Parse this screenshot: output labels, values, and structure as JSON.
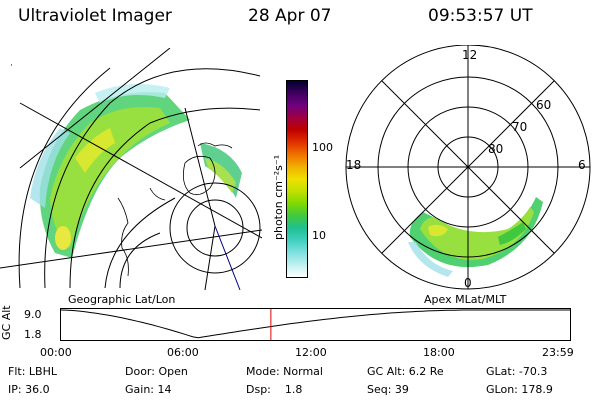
{
  "header": {
    "instrument": "Ultraviolet Imager",
    "date": "28 Apr 07",
    "time": "09:53:57 UT"
  },
  "left_panel": {
    "caption": "Geographic Lat/Lon"
  },
  "right_panel": {
    "caption": "Apex MLat/MLT",
    "mlt_labels": [
      "12",
      "18",
      "6",
      "0"
    ],
    "lat_labels": [
      "60",
      "70",
      "80"
    ]
  },
  "colorbar": {
    "unit_label": "photon cm⁻²s⁻¹",
    "ticks": [
      "100",
      "10"
    ],
    "colors": [
      "#000030",
      "#400060",
      "#700080",
      "#a00040",
      "#c00000",
      "#e03000",
      "#f07000",
      "#f0b000",
      "#f0e000",
      "#c0e000",
      "#80d800",
      "#40c840",
      "#20c090",
      "#40d0c0",
      "#80e0e0",
      "#c0f0f0",
      "#ffffff"
    ]
  },
  "timeline": {
    "axis_label": "GC Alt",
    "y_ticks": [
      "9.0",
      "1.8"
    ],
    "x_ticks": [
      "00:00",
      "06:00",
      "12:00",
      "18:00",
      "23:59"
    ],
    "current_time_hours": 9.9
  },
  "info": {
    "row1": [
      "Flt: LBHL",
      "Door: Open",
      "Mode: Normal",
      "GC Alt: 6.2 Re",
      "GLat: -70.3"
    ],
    "row2": [
      "IP: 36.0",
      "Gain: 14",
      "Dsp:    1.8",
      "Seq: 39",
      "GLon: 178.9"
    ]
  }
}
